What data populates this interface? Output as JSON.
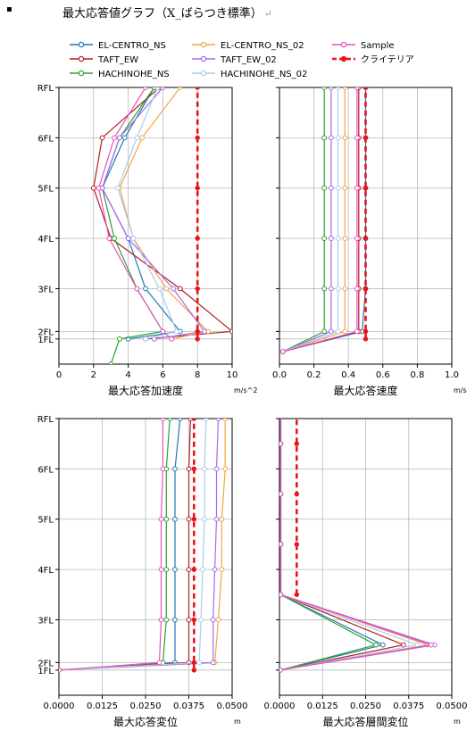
{
  "heading": {
    "bullet": "▪",
    "title": "最大応答値グラフ（X_ばらつき標準）",
    "return_mark": "↵"
  },
  "legend": [
    {
      "name": "EL-CENTRO_NS",
      "color": "#1f77b4",
      "dash": false
    },
    {
      "name": "TAFT_EW",
      "color": "#b51d1d",
      "dash": false
    },
    {
      "name": "HACHINOHE_NS",
      "color": "#2ca02c",
      "dash": false
    },
    {
      "name": "EL-CENTRO_NS_02",
      "color": "#f4a541",
      "dash": false
    },
    {
      "name": "TAFT_EW_02",
      "color": "#a56bea",
      "dash": false
    },
    {
      "name": "HACHINOHE_NS_02",
      "color": "#a8cdf0",
      "dash": false
    },
    {
      "name": "Sample",
      "color": "#e84fc1",
      "dash": false
    },
    {
      "name": "クライテリア",
      "color": "#e8141c",
      "dash": true
    }
  ],
  "chart_data": [
    {
      "type": "line",
      "xlabel": "最大応答加速度",
      "xunit": "m/s^2",
      "xlim": [
        0,
        10
      ],
      "xticks": [
        "0",
        "2",
        "4",
        "6",
        "8",
        "10"
      ],
      "yticks": [
        "1FL",
        "2FL",
        "3FL",
        "4FL",
        "5FL",
        "6FL",
        "RFL"
      ],
      "grid": true,
      "series": [
        {
          "name": "EL-CENTRO_NS",
          "x": [
            4.0,
            7.0,
            5.0,
            4.0,
            2.5,
            3.8,
            5.5
          ],
          "y": [
            0.0,
            0.15,
            1.0,
            2.0,
            3.0,
            4.0,
            5.0
          ]
        },
        {
          "name": "TAFT_EW",
          "x": [
            5.0,
            10.0,
            7.0,
            3.0,
            2.0,
            2.5,
            5.8
          ],
          "y": [
            0.0,
            0.15,
            1.0,
            2.0,
            3.0,
            4.0,
            5.0
          ]
        },
        {
          "name": "HACHINOHE_NS",
          "x": [
            3.0,
            3.5,
            6.0,
            4.5,
            3.2,
            2.5,
            3.5,
            5.5
          ],
          "y": [
            -0.5,
            0.0,
            0.15,
            1.0,
            2.0,
            3.0,
            4.0,
            5.0
          ]
        },
        {
          "name": "EL-CENTRO_NS_02",
          "x": [
            6.5,
            8.6,
            6.2,
            4.3,
            3.5,
            4.8,
            7.0
          ],
          "y": [
            0.0,
            0.15,
            1.0,
            2.0,
            3.0,
            4.0,
            5.0
          ]
        },
        {
          "name": "TAFT_EW_02",
          "x": [
            5.5,
            8.4,
            6.6,
            4.0,
            2.5,
            3.5,
            6.0
          ],
          "y": [
            0.0,
            0.15,
            1.0,
            2.0,
            3.0,
            4.0,
            5.0
          ]
        },
        {
          "name": "HACHINOHE_NS_02",
          "x": [
            5.0,
            6.8,
            5.8,
            4.3,
            3.4,
            4.5,
            5.7
          ],
          "y": [
            0.0,
            0.15,
            1.0,
            2.0,
            3.0,
            4.0,
            5.0
          ]
        },
        {
          "name": "Sample",
          "x": [
            6.5,
            6.0,
            4.5,
            2.9,
            2.3,
            3.2,
            5.0
          ],
          "y": [
            0.0,
            0.15,
            1.0,
            2.0,
            3.0,
            4.0,
            5.0
          ]
        },
        {
          "name": "クライテリア",
          "x": [
            8.0,
            8.0,
            8.0,
            8.0,
            8.0,
            8.0,
            8.0
          ],
          "y": [
            0.0,
            0.15,
            1.0,
            2.0,
            3.0,
            4.0,
            5.0
          ]
        }
      ]
    },
    {
      "type": "line",
      "xlabel": "最大応答速度",
      "xunit": "m/s",
      "xlim": [
        0,
        1.0
      ],
      "xticks": [
        "0.0",
        "0.2",
        "0.4",
        "0.6",
        "0.8",
        "1.0"
      ],
      "yticks": [
        "",
        "",
        "",
        "",
        "",
        "",
        ""
      ],
      "grid": true,
      "series": [
        {
          "name": "EL-CENTRO_NS",
          "x": [
            0.02,
            0.48,
            0.5,
            0.5,
            0.5,
            0.5,
            0.5
          ],
          "y": [
            -0.25,
            0.15,
            1.0,
            2.0,
            3.0,
            4.0,
            5.0
          ]
        },
        {
          "name": "TAFT_EW",
          "x": [
            0.02,
            0.46,
            0.46,
            0.46,
            0.46,
            0.46,
            0.46
          ],
          "y": [
            -0.25,
            0.15,
            1.0,
            2.0,
            3.0,
            4.0,
            5.0
          ]
        },
        {
          "name": "HACHINOHE_NS",
          "x": [
            0.02,
            0.26,
            0.26,
            0.26,
            0.26,
            0.26,
            0.26
          ],
          "y": [
            -0.25,
            0.15,
            1.0,
            2.0,
            3.0,
            4.0,
            5.0
          ]
        },
        {
          "name": "EL-CENTRO_NS_02",
          "x": [
            0.02,
            0.38,
            0.38,
            0.38,
            0.38,
            0.38,
            0.38
          ],
          "y": [
            -0.25,
            0.15,
            1.0,
            2.0,
            3.0,
            4.0,
            5.0
          ]
        },
        {
          "name": "TAFT_EW_02",
          "x": [
            0.02,
            0.3,
            0.3,
            0.3,
            0.3,
            0.3,
            0.3
          ],
          "y": [
            -0.25,
            0.15,
            1.0,
            2.0,
            3.0,
            4.0,
            5.0
          ]
        },
        {
          "name": "HACHINOHE_NS_02",
          "x": [
            0.02,
            0.34,
            0.34,
            0.34,
            0.34,
            0.34,
            0.34
          ],
          "y": [
            -0.25,
            0.15,
            1.0,
            2.0,
            3.0,
            4.0,
            5.0
          ]
        },
        {
          "name": "Sample",
          "x": [
            0.02,
            0.45,
            0.45,
            0.45,
            0.45,
            0.45,
            0.45
          ],
          "y": [
            -0.25,
            0.15,
            1.0,
            2.0,
            3.0,
            4.0,
            5.0
          ]
        },
        {
          "name": "クライテリア",
          "x": [
            0.5,
            0.5,
            0.5,
            0.5,
            0.5,
            0.5,
            0.5
          ],
          "y": [
            0.0,
            0.15,
            1.0,
            2.0,
            3.0,
            4.0,
            5.0
          ]
        }
      ]
    },
    {
      "type": "line",
      "xlabel": "最大応答変位",
      "xunit": "m",
      "xlim": [
        0,
        0.05
      ],
      "xticks": [
        "0.0000",
        "0.0125",
        "0.0250",
        "0.0375",
        "0.0500"
      ],
      "yticks": [
        "1FL",
        "2FL",
        "3FL",
        "4FL",
        "5FL",
        "6FL",
        "RFL"
      ],
      "grid": true,
      "series": [
        {
          "name": "EL-CENTRO_NS",
          "x": [
            0.0,
            0.0335,
            0.0335,
            0.0335,
            0.0335,
            0.0335,
            0.035
          ],
          "y": [
            0.0,
            0.15,
            1.0,
            2.0,
            3.0,
            4.0,
            5.0
          ]
        },
        {
          "name": "TAFT_EW",
          "x": [
            0.0,
            0.0375,
            0.0375,
            0.0375,
            0.0375,
            0.0375,
            0.038
          ],
          "y": [
            0.0,
            0.15,
            1.0,
            2.0,
            3.0,
            4.0,
            5.0
          ]
        },
        {
          "name": "HACHINOHE_NS",
          "x": [
            0.0,
            0.03,
            0.031,
            0.031,
            0.031,
            0.031,
            0.032
          ],
          "y": [
            0.0,
            0.15,
            1.0,
            2.0,
            3.0,
            4.0,
            5.0
          ]
        },
        {
          "name": "EL-CENTRO_NS_02",
          "x": [
            0.0,
            0.045,
            0.046,
            0.047,
            0.047,
            0.048,
            0.048
          ],
          "y": [
            0.0,
            0.15,
            1.0,
            2.0,
            3.0,
            4.0,
            5.0
          ]
        },
        {
          "name": "TAFT_EW_02",
          "x": [
            0.0,
            0.0445,
            0.0445,
            0.045,
            0.0455,
            0.0455,
            0.046
          ],
          "y": [
            0.0,
            0.15,
            1.0,
            2.0,
            3.0,
            4.0,
            5.0
          ]
        },
        {
          "name": "HACHINOHE_NS_02",
          "x": [
            0.0,
            0.0405,
            0.041,
            0.0415,
            0.042,
            0.042,
            0.0425
          ],
          "y": [
            0.0,
            0.15,
            1.0,
            2.0,
            3.0,
            4.0,
            5.0
          ]
        },
        {
          "name": "Sample",
          "x": [
            0.0,
            0.029,
            0.0295,
            0.0295,
            0.0295,
            0.03,
            0.03
          ],
          "y": [
            0.0,
            0.15,
            1.0,
            2.0,
            3.0,
            4.0,
            5.0
          ]
        },
        {
          "name": "クライテリア",
          "x": [
            0.039,
            0.039,
            0.039,
            0.039,
            0.039,
            0.039,
            0.039
          ],
          "y": [
            0.0,
            0.15,
            1.0,
            2.0,
            3.0,
            4.0,
            5.0
          ]
        }
      ]
    },
    {
      "type": "line",
      "xlabel": "最大応答層間変位",
      "xunit": "m",
      "xlim": [
        0,
        0.05
      ],
      "xticks": [
        "0.0000",
        "0.0125",
        "0.0250",
        "0.0375",
        "0.0500"
      ],
      "yticks": [
        "",
        "",
        "",
        "",
        "",
        "",
        ""
      ],
      "grid": true,
      "series": [
        {
          "name": "EL-CENTRO_NS",
          "x": [
            0.0002,
            0.03,
            0.0003,
            0.0003,
            0.0003,
            0.0003,
            0.0003
          ],
          "y": [
            0.0,
            0.5,
            1.5,
            2.5,
            3.5,
            4.5,
            5.5
          ]
        },
        {
          "name": "TAFT_EW",
          "x": [
            0.0002,
            0.036,
            0.0004,
            0.0004,
            0.0004,
            0.0004,
            0.0004
          ],
          "y": [
            0.0,
            0.5,
            1.5,
            2.5,
            3.5,
            4.5,
            5.5
          ]
        },
        {
          "name": "HACHINOHE_NS",
          "x": [
            0.0002,
            0.028,
            0.0003,
            0.0003,
            0.0003,
            0.0003,
            0.0003
          ],
          "y": [
            0.0,
            0.5,
            1.5,
            2.5,
            3.5,
            4.5,
            5.5
          ]
        },
        {
          "name": "EL-CENTRO_NS_02",
          "x": [
            0.0002,
            0.043,
            0.0004,
            0.0004,
            0.0004,
            0.0004,
            0.0004
          ],
          "y": [
            0.0,
            0.5,
            1.5,
            2.5,
            3.5,
            4.5,
            5.5
          ]
        },
        {
          "name": "TAFT_EW_02",
          "x": [
            0.0002,
            0.045,
            0.0004,
            0.0004,
            0.0004,
            0.0004,
            0.0004
          ],
          "y": [
            0.0,
            0.5,
            1.5,
            2.5,
            3.5,
            4.5,
            5.5
          ]
        },
        {
          "name": "HACHINOHE_NS_02",
          "x": [
            0.0002,
            0.04,
            0.0004,
            0.0004,
            0.0004,
            0.0004,
            0.0004
          ],
          "y": [
            0.0,
            0.5,
            1.5,
            2.5,
            3.5,
            4.5,
            5.5
          ]
        },
        {
          "name": "Sample",
          "x": [
            0.0002,
            0.044,
            0.0003,
            0.0003,
            0.0003,
            0.0003,
            0.0003
          ],
          "y": [
            0.0,
            0.5,
            1.5,
            2.5,
            3.5,
            4.5,
            5.5
          ]
        },
        {
          "name": "クライテリア",
          "x": [
            0.005,
            0.005,
            0.005,
            0.005,
            0.005
          ],
          "y": [
            1.5,
            2.5,
            3.5,
            4.5,
            5.5
          ]
        }
      ]
    }
  ]
}
